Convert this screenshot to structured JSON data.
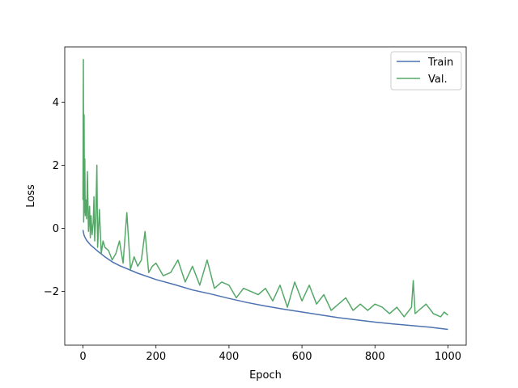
{
  "chart_data": {
    "type": "line",
    "title": "",
    "xlabel": "Epoch",
    "ylabel": "Loss",
    "xlim": [
      -50,
      1050
    ],
    "ylim": [
      -3.7,
      5.75
    ],
    "xticks": [
      0,
      200,
      400,
      600,
      800,
      1000
    ],
    "yticks": [
      -2,
      0,
      2,
      4
    ],
    "ytick_labels": [
      "−2",
      "0",
      "2",
      "4"
    ],
    "grid": false,
    "legend_position": "top-right",
    "series": [
      {
        "name": "Train",
        "color": "#4c72b0",
        "x": [
          0,
          3,
          6,
          10,
          15,
          20,
          30,
          40,
          60,
          80,
          100,
          150,
          200,
          250,
          300,
          350,
          400,
          450,
          500,
          550,
          600,
          650,
          700,
          750,
          800,
          850,
          900,
          950,
          1000
        ],
        "values": [
          -0.05,
          -0.22,
          -0.3,
          -0.38,
          -0.45,
          -0.52,
          -0.62,
          -0.72,
          -0.9,
          -1.06,
          -1.18,
          -1.42,
          -1.62,
          -1.78,
          -1.95,
          -2.08,
          -2.22,
          -2.35,
          -2.46,
          -2.56,
          -2.65,
          -2.74,
          -2.83,
          -2.9,
          -2.97,
          -3.03,
          -3.08,
          -3.13,
          -3.2
        ]
      },
      {
        "name": "Val.",
        "color": "#55a868",
        "x": [
          0,
          1,
          2,
          3,
          4,
          5,
          6,
          8,
          10,
          12,
          15,
          18,
          20,
          22,
          25,
          28,
          30,
          32,
          35,
          38,
          40,
          45,
          50,
          55,
          60,
          70,
          80,
          90,
          100,
          110,
          120,
          130,
          140,
          150,
          160,
          170,
          180,
          190,
          200,
          220,
          240,
          260,
          280,
          300,
          320,
          340,
          360,
          380,
          400,
          420,
          440,
          460,
          480,
          500,
          520,
          540,
          560,
          580,
          600,
          620,
          640,
          660,
          680,
          700,
          720,
          740,
          760,
          780,
          800,
          820,
          840,
          860,
          880,
          900,
          905,
          910,
          920,
          940,
          960,
          980,
          990,
          995,
          1000
        ],
        "values": [
          0.9,
          5.35,
          0.2,
          3.6,
          0.5,
          2.2,
          0.4,
          0.9,
          0.3,
          1.8,
          -0.1,
          0.7,
          -0.3,
          0.4,
          -0.2,
          0.2,
          1.0,
          -0.4,
          0.3,
          2.0,
          -0.6,
          0.6,
          -0.8,
          -0.4,
          -0.6,
          -0.7,
          -1.0,
          -0.8,
          -0.4,
          -1.1,
          0.5,
          -1.3,
          -0.9,
          -1.2,
          -1.0,
          -0.1,
          -1.4,
          -1.2,
          -1.1,
          -1.5,
          -1.4,
          -1.0,
          -1.7,
          -1.2,
          -1.8,
          -1.0,
          -1.9,
          -1.7,
          -1.8,
          -2.2,
          -1.9,
          -2.0,
          -2.1,
          -1.9,
          -2.3,
          -1.8,
          -2.5,
          -1.7,
          -2.3,
          -1.8,
          -2.4,
          -2.1,
          -2.6,
          -2.4,
          -2.2,
          -2.6,
          -2.4,
          -2.6,
          -2.4,
          -2.5,
          -2.7,
          -2.5,
          -2.8,
          -2.5,
          -1.65,
          -2.7,
          -2.6,
          -2.4,
          -2.7,
          -2.8,
          -2.65,
          -2.7,
          -2.75
        ]
      }
    ]
  }
}
